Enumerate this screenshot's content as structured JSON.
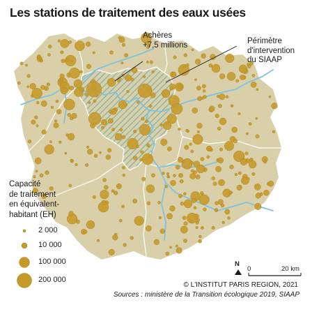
{
  "title": "Les stations de traitement des eaux usées",
  "annotations": {
    "acheres_name": "Achères",
    "acheres_capacity": "+7,5 millions",
    "perimetre_line1": "Périmètre",
    "perimetre_line2": "d'intervention",
    "perimetre_line3": "du SIAAP"
  },
  "legend": {
    "title_line1": "Capacité",
    "title_line2": "de traitement",
    "title_line3": "en équivalent-",
    "title_line4": "habitant (EH)",
    "items": [
      {
        "label": "2 000",
        "value": 2000
      },
      {
        "label": "10 000",
        "value": 10000
      },
      {
        "label": "100 000",
        "value": 100000
      },
      {
        "label": "200 000",
        "value": 200000
      }
    ]
  },
  "scale": {
    "north": "N",
    "zero": "0",
    "distance": "20 km"
  },
  "credit": "© L'INSTITUT PARIS REGION, 2021",
  "sources": "Sources : ministère de la Transition écologique 2019, SIAAP",
  "colors": {
    "territory": "#d9cfa9",
    "dot": "#c59a2a",
    "dot_edge": "#a97f18",
    "river": "#7ec3dc",
    "hatch": "#8fb7a8",
    "boundary": "#ffffff"
  }
}
